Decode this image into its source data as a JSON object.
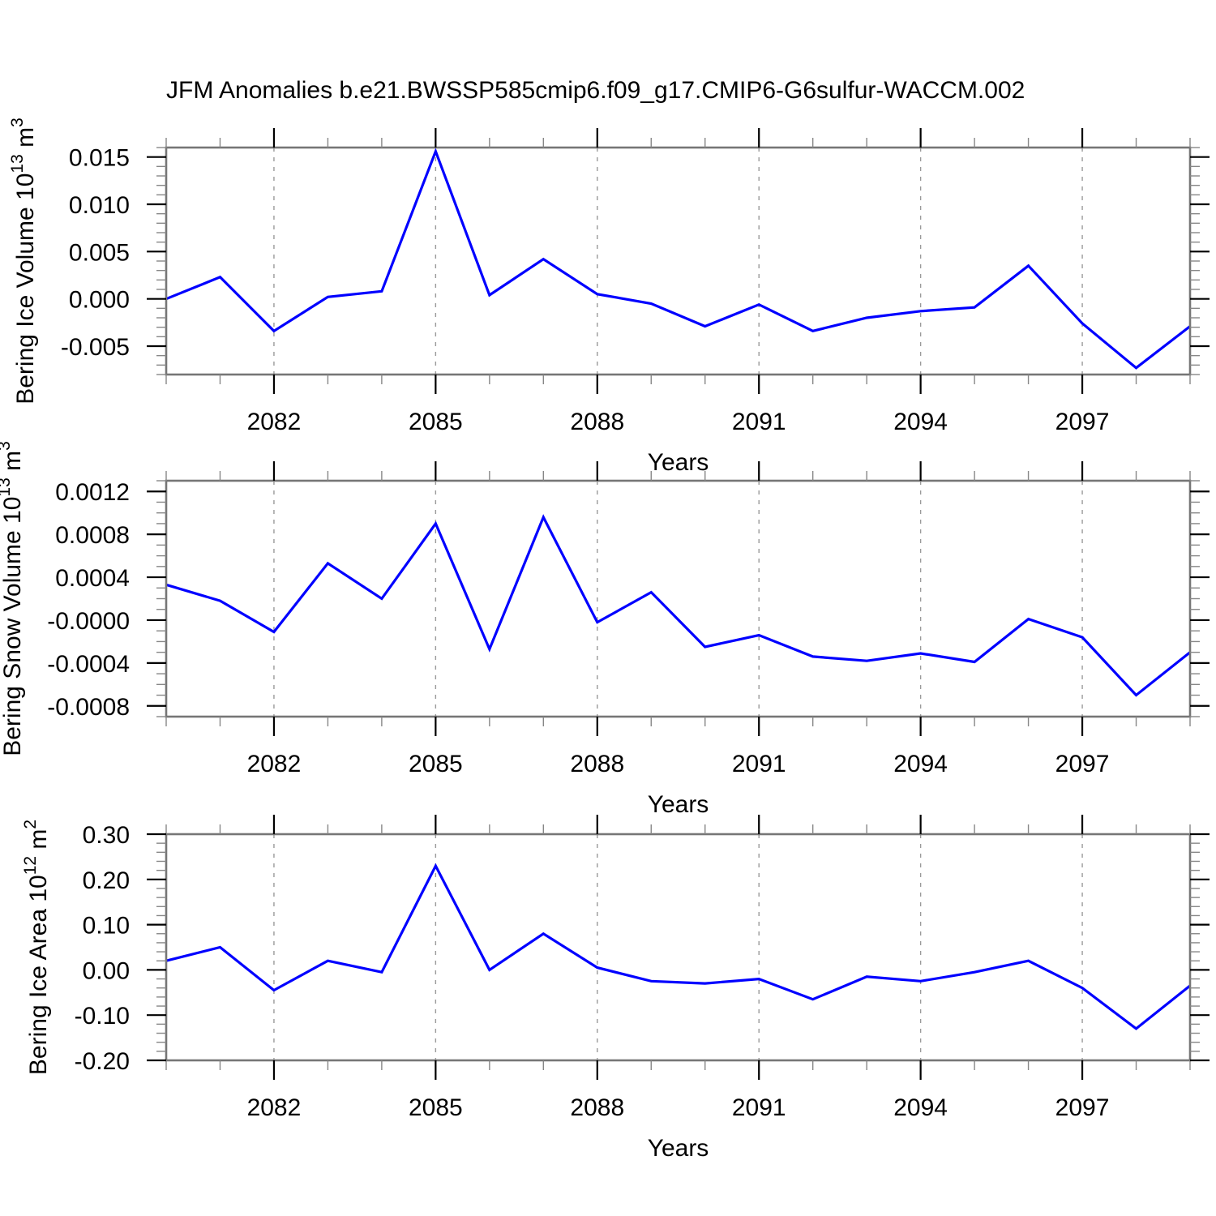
{
  "title": "JFM Anomalies b.e21.BWSSP585cmip6.f09_g17.CMIP6-G6sulfur-WACCM.002",
  "line_color": "#0000ff",
  "chart_data": [
    {
      "type": "line",
      "ylabel_parts": [
        {
          "text": "Bering Ice Volume 10",
          "sup": false
        },
        {
          "text": "13",
          "sup": true
        },
        {
          "text": " m",
          "sup": false
        },
        {
          "text": "3",
          "sup": true
        }
      ],
      "xlabel": "Years",
      "x": [
        2080,
        2081,
        2082,
        2083,
        2084,
        2085,
        2086,
        2087,
        2088,
        2089,
        2090,
        2091,
        2092,
        2093,
        2094,
        2095,
        2096,
        2097,
        2098,
        2099
      ],
      "values": [
        0.0,
        0.0023,
        -0.0034,
        0.0002,
        0.0008,
        0.0156,
        0.0004,
        0.0042,
        0.0005,
        -0.0005,
        -0.0029,
        -0.0006,
        -0.0034,
        -0.002,
        -0.0013,
        -0.0009,
        0.0035,
        -0.0026,
        -0.0073,
        -0.0029
      ],
      "xlim": [
        2080,
        2099
      ],
      "ylim": [
        -0.008,
        0.016
      ],
      "yticks": [
        0.015,
        0.01,
        0.005,
        0.0,
        -0.005
      ],
      "ytick_labels": [
        "0.015",
        "0.010",
        "0.005",
        "0.000",
        "-0.005"
      ],
      "y_minor_step": 0.001,
      "xticks_major": [
        2082,
        2085,
        2088,
        2091,
        2094,
        2097
      ],
      "xtick_labels": [
        "2082",
        "2085",
        "2088",
        "2091",
        "2094",
        "2097"
      ],
      "x_minor_step": 1,
      "grid_x": [
        2082,
        2085,
        2088,
        2091,
        2094,
        2097
      ],
      "grid_on": true,
      "legend": "none"
    },
    {
      "type": "line",
      "ylabel_parts": [
        {
          "text": "Bering Snow Volume 10",
          "sup": false
        },
        {
          "text": "13",
          "sup": true
        },
        {
          "text": " m",
          "sup": false
        },
        {
          "text": "3",
          "sup": true
        }
      ],
      "xlabel": "Years",
      "x": [
        2080,
        2081,
        2082,
        2083,
        2084,
        2085,
        2086,
        2087,
        2088,
        2089,
        2090,
        2091,
        2092,
        2093,
        2094,
        2095,
        2096,
        2097,
        2098,
        2099
      ],
      "values": [
        0.00033,
        0.00018,
        -0.00011,
        0.00053,
        0.0002,
        0.0009,
        -0.00027,
        0.00096,
        -2e-05,
        0.00026,
        -0.00025,
        -0.00014,
        -0.00034,
        -0.00038,
        -0.00031,
        -0.00039,
        1e-05,
        -0.00016,
        -0.0007,
        -0.0003
      ],
      "xlim": [
        2080,
        2099
      ],
      "ylim": [
        -0.0009,
        0.0013
      ],
      "yticks": [
        0.0012,
        0.0008,
        0.0004,
        0.0,
        -0.0004,
        -0.0008
      ],
      "ytick_labels": [
        "0.0012",
        "0.0008",
        "0.0004",
        "-0.0000",
        "-0.0004",
        "-0.0008"
      ],
      "y_minor_step": 0.0001,
      "xticks_major": [
        2082,
        2085,
        2088,
        2091,
        2094,
        2097
      ],
      "xtick_labels": [
        "2082",
        "2085",
        "2088",
        "2091",
        "2094",
        "2097"
      ],
      "x_minor_step": 1,
      "grid_x": [
        2082,
        2085,
        2088,
        2091,
        2094,
        2097
      ],
      "grid_on": true,
      "legend": "none"
    },
    {
      "type": "line",
      "ylabel_parts": [
        {
          "text": "Bering Ice Area 10",
          "sup": false
        },
        {
          "text": "12",
          "sup": true
        },
        {
          "text": " m",
          "sup": false
        },
        {
          "text": "2",
          "sup": true
        }
      ],
      "xlabel": "Years",
      "x": [
        2080,
        2081,
        2082,
        2083,
        2084,
        2085,
        2086,
        2087,
        2088,
        2089,
        2090,
        2091,
        2092,
        2093,
        2094,
        2095,
        2096,
        2097,
        2098,
        2099
      ],
      "values": [
        0.02,
        0.05,
        -0.045,
        0.02,
        -0.005,
        0.23,
        0.0,
        0.08,
        0.005,
        -0.025,
        -0.03,
        -0.02,
        -0.065,
        -0.015,
        -0.025,
        -0.005,
        0.02,
        -0.04,
        -0.13,
        -0.035
      ],
      "xlim": [
        2080,
        2099
      ],
      "ylim": [
        -0.2,
        0.3
      ],
      "yticks": [
        0.3,
        0.2,
        0.1,
        0.0,
        -0.1,
        -0.2
      ],
      "ytick_labels": [
        "0.30",
        "0.20",
        "0.10",
        "0.00",
        "-0.10",
        "-0.20"
      ],
      "y_minor_step": 0.02,
      "xticks_major": [
        2082,
        2085,
        2088,
        2091,
        2094,
        2097
      ],
      "xtick_labels": [
        "2082",
        "2085",
        "2088",
        "2091",
        "2094",
        "2097"
      ],
      "x_minor_step": 1,
      "grid_x": [
        2082,
        2085,
        2088,
        2091,
        2094,
        2097
      ],
      "grid_on": true,
      "legend": "none"
    }
  ]
}
